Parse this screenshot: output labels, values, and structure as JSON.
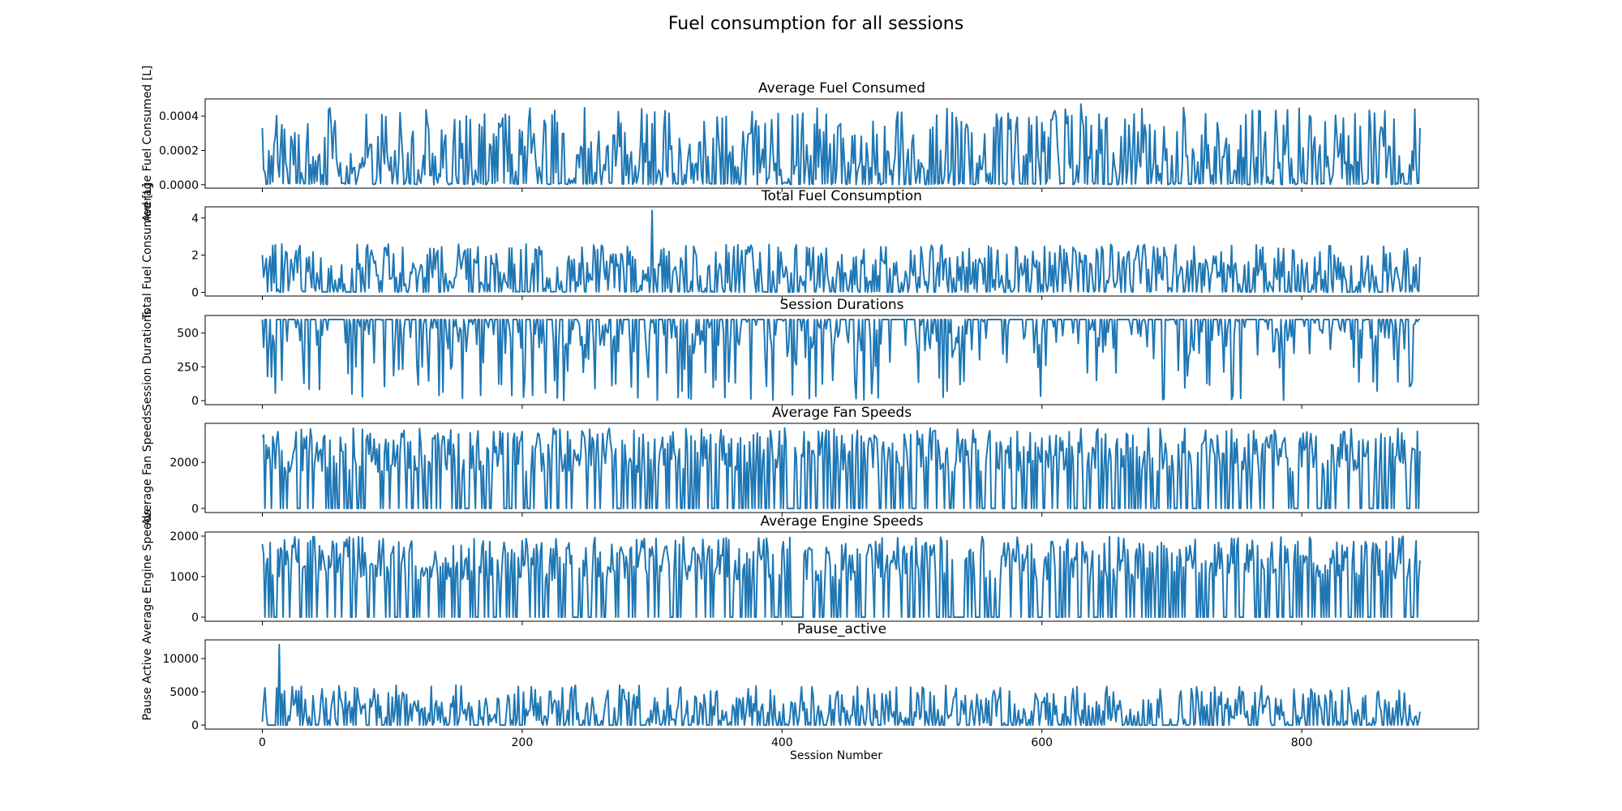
{
  "figure": {
    "suptitle": "Fuel consumption for all sessions",
    "xlabel": "Session Number",
    "x_ticks": [
      0,
      200,
      400,
      600,
      800
    ]
  },
  "chart_data": [
    {
      "type": "line",
      "title": "Average Fuel Consumed",
      "ylabel": "Average Fuel Consumed [L]",
      "ylim": [
        -2e-05,
        0.0005
      ],
      "xlim": [
        -44,
        936
      ],
      "yticks": [
        0,
        0.0002,
        0.0004
      ],
      "ytick_labels": [
        "0.0000",
        "0.0002",
        "0.0004"
      ],
      "color": "#1f77b4",
      "series": [
        {
          "x_start": 0,
          "x_end": 891,
          "n_points": 892,
          "approx_min": 0,
          "approx_max": 0.00047,
          "approx_first": 0.00033,
          "approx_last": 0.00033
        }
      ]
    },
    {
      "type": "line",
      "title": "Total Fuel Consumption",
      "ylabel": "Total Fuel Consumed [L]",
      "ylim": [
        -0.2,
        4.6
      ],
      "xlim": [
        -44,
        936
      ],
      "yticks": [
        0,
        2,
        4
      ],
      "ytick_labels": [
        "0",
        "2",
        "4"
      ],
      "color": "#1f77b4",
      "series": [
        {
          "x_start": 0,
          "x_end": 891,
          "n_points": 892,
          "approx_min": 0,
          "approx_max": 4.4,
          "approx_first": 2.0,
          "approx_last": 1.9
        }
      ]
    },
    {
      "type": "line",
      "title": "Session Durations",
      "ylabel": "Session Durations",
      "ylim": [
        -30,
        630
      ],
      "xlim": [
        -44,
        936
      ],
      "yticks": [
        0,
        250,
        500
      ],
      "ytick_labels": [
        "0",
        "250",
        "500"
      ],
      "color": "#1f77b4",
      "series": [
        {
          "x_start": 0,
          "x_end": 891,
          "n_points": 892,
          "approx_min": 0,
          "approx_max": 600,
          "approx_first": 600,
          "approx_last": 600
        }
      ]
    },
    {
      "type": "line",
      "title": "Average Fan Speeds",
      "ylabel": "Average Fan Speeds",
      "ylim": [
        -180,
        3700
      ],
      "xlim": [
        -44,
        936
      ],
      "yticks": [
        0,
        2000
      ],
      "ytick_labels": [
        "0",
        "2000"
      ],
      "color": "#1f77b4",
      "series": [
        {
          "x_start": 0,
          "x_end": 891,
          "n_points": 892,
          "approx_min": 0,
          "approx_max": 3500,
          "approx_first": 3100,
          "approx_last": 2500
        }
      ]
    },
    {
      "type": "line",
      "title": "Average Engine Speeds",
      "ylabel": "Average Engine Speeds",
      "ylim": [
        -100,
        2100
      ],
      "xlim": [
        -44,
        936
      ],
      "yticks": [
        0,
        1000,
        2000
      ],
      "ytick_labels": [
        "0",
        "1000",
        "2000"
      ],
      "color": "#1f77b4",
      "series": [
        {
          "x_start": 0,
          "x_end": 891,
          "n_points": 892,
          "approx_min": 0,
          "approx_max": 2000,
          "approx_first": 1800,
          "approx_last": 1400
        }
      ]
    },
    {
      "type": "line",
      "title": "Pause_active",
      "ylabel": "Pause Active",
      "ylim": [
        -600,
        12800
      ],
      "xlim": [
        -44,
        936
      ],
      "yticks": [
        0,
        5000,
        10000
      ],
      "ytick_labels": [
        "0",
        "5000",
        "10000"
      ],
      "color": "#1f77b4",
      "series": [
        {
          "x_start": 0,
          "x_end": 891,
          "n_points": 892,
          "approx_min": 0,
          "approx_max": 12100,
          "approx_first": 500,
          "approx_last": 2000
        }
      ]
    }
  ]
}
